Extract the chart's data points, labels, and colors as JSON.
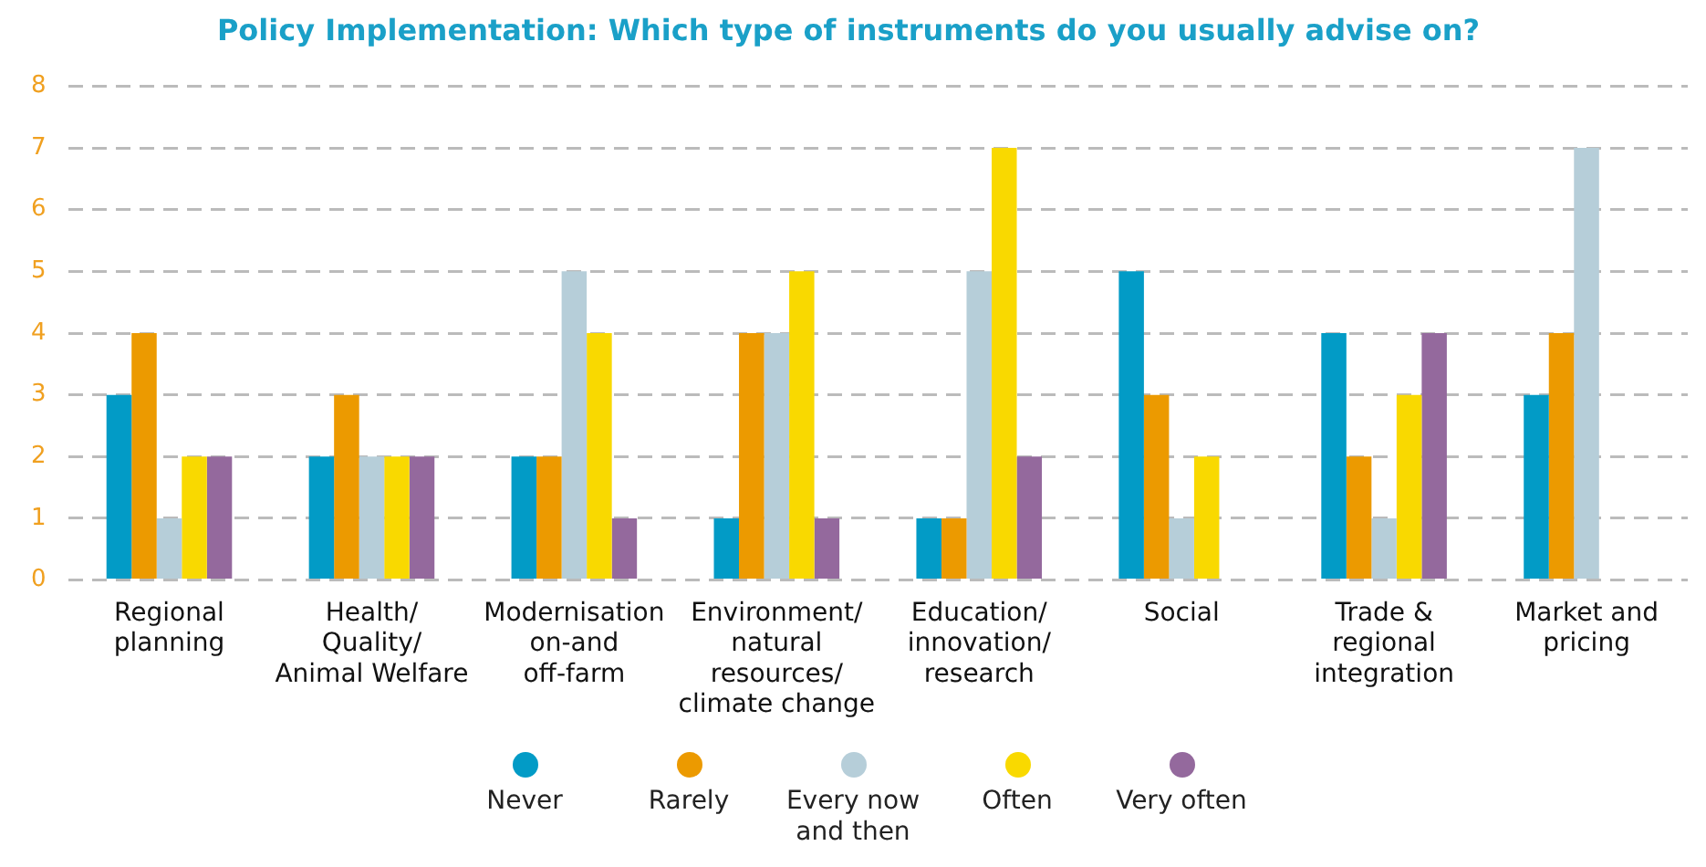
{
  "chart_data": {
    "type": "bar",
    "title": "Policy Implementation: Which type of instruments do you usually advise on?",
    "categories": [
      "Regional\nplanning",
      "Health/\nQuality/\nAnimal Welfare",
      "Modernisation\non-and\noff-farm",
      "Environment/\nnatural\nresources/\nclimate change",
      "Education/\ninnovation/\nresearch",
      "Social",
      "Trade &\nregional\nintegration",
      "Market and\npricing"
    ],
    "series": [
      {
        "name": "Never",
        "color": "#029bc6",
        "values": [
          3,
          2,
          2,
          1,
          1,
          5,
          4,
          3
        ]
      },
      {
        "name": "Rarely",
        "color": "#ec9a00",
        "values": [
          4,
          3,
          2,
          4,
          1,
          3,
          2,
          4
        ]
      },
      {
        "name": "Every now\nand then",
        "color": "#b6ced9",
        "values": [
          1,
          2,
          5,
          4,
          5,
          1,
          1,
          7
        ]
      },
      {
        "name": "Often",
        "color": "#f9d900",
        "values": [
          2,
          2,
          4,
          5,
          7,
          2,
          3,
          0
        ]
      },
      {
        "name": "Very often",
        "color": "#94699d",
        "values": [
          2,
          2,
          1,
          1,
          2,
          0,
          4,
          0
        ]
      }
    ],
    "ylim": [
      0,
      8
    ],
    "yticks": [
      0,
      1,
      2,
      3,
      4,
      5,
      6,
      7,
      8
    ],
    "grid": "y",
    "legend": "bottom"
  }
}
